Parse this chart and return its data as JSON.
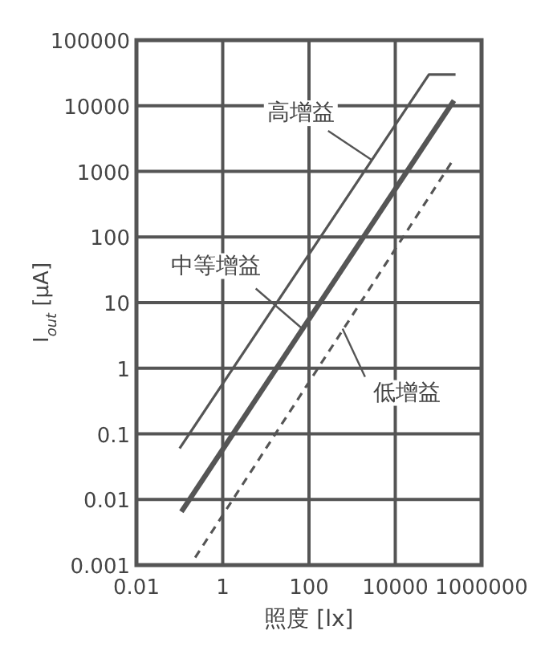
{
  "chart_data": {
    "type": "line",
    "xlabel": "照度 [lx]",
    "ylabel": "I$_{out}$ [μA]",
    "log": "xy",
    "xlim": [
      0.01,
      1000000
    ],
    "ylim": [
      0.001,
      100000
    ],
    "xticks": [
      0.01,
      1,
      100,
      10000,
      1000000
    ],
    "yticks": [
      0.001,
      0.01,
      0.1,
      1,
      10,
      100,
      1000,
      10000,
      100000
    ],
    "grid": true,
    "marker": "none",
    "series": [
      {
        "color": "#555555",
        "line_style": "solid",
        "x": [
          0.1,
          60000,
          250000
        ],
        "values": [
          0.06,
          30000,
          30000
        ]
      },
      {
        "color": "#555555",
        "line_style": "solid",
        "x": [
          0.11,
          230000
        ],
        "values": [
          0.0065,
          12000
        ]
      },
      {
        "color": "#555555",
        "line_style": "dashed",
        "x": [
          0.23,
          220000
        ],
        "values": [
          0.0013,
          1500
        ]
      }
    ],
    "annotations": [
      {
        "text": "高增益",
        "x": 2800,
        "y": 1500
      },
      {
        "text": "中等增益",
        "x": 70,
        "y": 4
      },
      {
        "text": "低增益",
        "x": 600,
        "y": 4
      }
    ]
  }
}
